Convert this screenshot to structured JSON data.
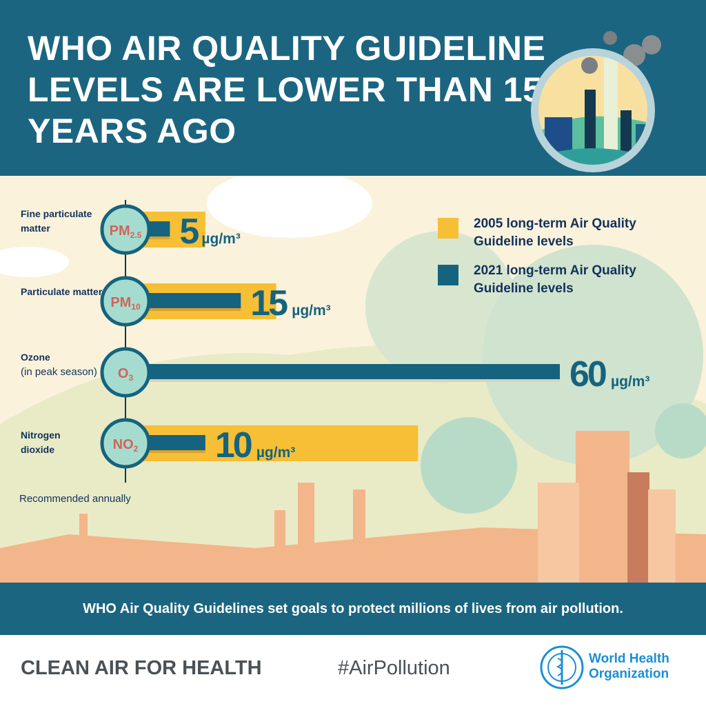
{
  "header": {
    "title": "WHO AIR QUALITY GUIDELINE LEVELS ARE LOWER THAN 15 YEARS AGO"
  },
  "legend": [
    {
      "label": "2005 long-term Air Quality Guideline levels",
      "color": "#f6bf35"
    },
    {
      "label": "2021 long-term Air Quality Guideline levels",
      "color": "#15637e"
    }
  ],
  "note": "Recommended annually",
  "banner": "WHO Air Quality Guidelines set goals to protect millions of lives from air pollution.",
  "footer": {
    "tagline": "CLEAN AIR FOR HEALTH",
    "hashtag": "#AirPollution",
    "org": "World Health Organization",
    "org_line1": "World Health",
    "org_line2": "Organization"
  },
  "rows": [
    {
      "name": "Fine particulate matter",
      "name_bold": "Fine particulate matter",
      "name_light": "",
      "symbol": "PM",
      "sub": "2.5",
      "value_label": "5",
      "unit": "µg/m³"
    },
    {
      "name": "Particulate matter",
      "name_bold": "Particulate matter",
      "name_light": "",
      "symbol": "PM",
      "sub": "10",
      "value_label": "15",
      "unit": "µg/m³"
    },
    {
      "name": "Ozone",
      "name_bold": "Ozone",
      "name_light": "(in peak season)",
      "symbol": "O",
      "sub": "3",
      "value_label": "60",
      "unit": "µg/m³"
    },
    {
      "name": "Nitrogen dioxide",
      "name_bold": "Nitrogen dioxide",
      "name_light": "",
      "symbol": "NO",
      "sub": "2",
      "value_label": "10",
      "unit": "µg/m³"
    }
  ],
  "chart_data": {
    "type": "bar",
    "orientation": "horizontal",
    "categories": [
      "Fine particulate matter (PM2.5)",
      "Particulate matter (PM10)",
      "Ozone (in peak season)",
      "Nitrogen dioxide (NO2)"
    ],
    "series": [
      {
        "name": "2005 long-term Air Quality Guideline levels",
        "color": "#f6bf35",
        "values": [
          10,
          20,
          null,
          40
        ]
      },
      {
        "name": "2021 long-term Air Quality Guideline levels",
        "color": "#15637e",
        "values": [
          5,
          15,
          60,
          10
        ]
      }
    ],
    "unit": "µg/m³",
    "xlim": [
      0,
      60
    ],
    "legend": "top-right",
    "grid": false
  }
}
